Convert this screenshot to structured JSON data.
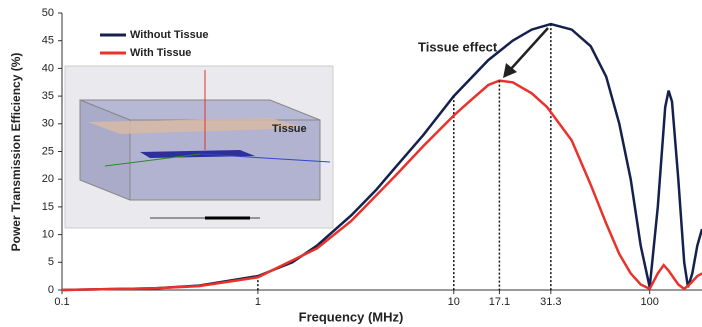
{
  "chart_data": {
    "type": "line",
    "x_label": "Frequency (MHz)",
    "y_label": "Power Transmission Efficiency (%)",
    "annotation": "Tissue effect",
    "inset_label": "Tissue",
    "log_x": true,
    "xlim": [
      0.1,
      185
    ],
    "ylim": [
      0,
      50
    ],
    "xticks": [
      0.1,
      1,
      10,
      17.1,
      31.3,
      100
    ],
    "yticks": [
      0,
      5,
      10,
      15,
      20,
      25,
      30,
      35,
      40,
      45,
      50
    ],
    "legend": "upper left",
    "series": [
      {
        "name": "Without Tissue",
        "color": "#14214d",
        "x": [
          0.1,
          0.3,
          0.5,
          1,
          1.5,
          2,
          3,
          4,
          5,
          7,
          10,
          15,
          20,
          25,
          31.3,
          40,
          50,
          60,
          70,
          80,
          90,
          100,
          110,
          120,
          125,
          130,
          140,
          150,
          157,
          165,
          175,
          185
        ],
        "values": [
          0,
          0.3,
          0.8,
          2.5,
          5,
          8,
          13.5,
          18,
          22,
          28,
          35,
          41.5,
          45,
          47,
          48,
          47,
          44,
          38.5,
          30,
          20,
          8,
          0.5,
          15,
          33,
          36,
          34,
          20,
          5,
          0.5,
          3,
          8,
          11
        ]
      },
      {
        "name": "With Tissue",
        "color": "#e8322b",
        "x": [
          0.1,
          0.3,
          0.5,
          1,
          2,
          3,
          5,
          7,
          10,
          12,
          15,
          17.1,
          20,
          25,
          30,
          40,
          50,
          60,
          70,
          80,
          90,
          100,
          110,
          118,
          125,
          140,
          150,
          160,
          175,
          185
        ],
        "values": [
          0,
          0.3,
          0.7,
          2.3,
          7.5,
          12.5,
          20.5,
          26,
          31.5,
          34,
          37,
          37.8,
          37.5,
          35.5,
          33,
          27,
          19,
          12,
          6.5,
          3,
          1,
          0.2,
          3,
          4.5,
          3.5,
          1,
          0.2,
          1,
          2.5,
          3
        ]
      }
    ]
  }
}
